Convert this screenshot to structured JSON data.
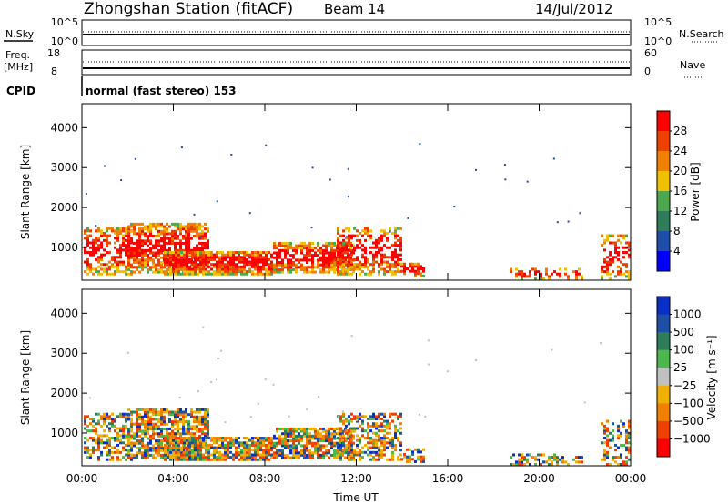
{
  "header": {
    "station": "Zhongshan Station (fitACF)",
    "beam": "Beam 14",
    "date": "14/Jul/2012"
  },
  "noise_panel": {
    "left_label": "N.Sky",
    "left_ticks": [
      "10^5",
      "10^0"
    ],
    "right_label": "N.Search",
    "right_ticks": [
      "10^5",
      "10^0"
    ]
  },
  "freq_panel": {
    "left_label_1": "Freq.",
    "left_label_2": "[MHz]",
    "left_ticks": [
      "18",
      "8"
    ],
    "right_label": "Nave",
    "right_ticks": [
      "60",
      "0"
    ]
  },
  "cpid": {
    "label": "CPID",
    "text": "normal (fast stereo) 153"
  },
  "colors": {
    "power": [
      "#0000ff",
      "#1e4fa8",
      "#2e7d5a",
      "#4ca84c",
      "#f0c000",
      "#f08000",
      "#f04000",
      "#ff0000"
    ],
    "velocity": [
      "#ff0000",
      "#f04000",
      "#f08000",
      "#f0b000",
      "#c0c0c0",
      "#4cb84c",
      "#2e7d5a",
      "#1e4fa8",
      "#0a2fc8"
    ]
  },
  "chart_data": [
    {
      "type": "heatmap",
      "name": "power",
      "ylabel": "Slant Range [km]",
      "ylim": [
        180,
        4600
      ],
      "yticks": [
        "1000",
        "2000",
        "3000",
        "4000"
      ],
      "colorbar_label": "Power [dB]",
      "colorbar_ticks": [
        "4",
        "8",
        "12",
        "16",
        "20",
        "24",
        "28"
      ]
    },
    {
      "type": "heatmap",
      "name": "velocity",
      "ylabel": "Slant Range [km]",
      "ylim": [
        180,
        4600
      ],
      "yticks": [
        "1000",
        "2000",
        "3000",
        "4000"
      ],
      "xlabel": "Time UT",
      "xticks": [
        "00:00",
        "04:00",
        "08:00",
        "12:00",
        "16:00",
        "20:00",
        "00:00"
      ],
      "colorbar_label": "Velocity [m s⁻¹]",
      "colorbar_ticks": [
        "1000",
        "500",
        "100",
        "25",
        "−25",
        "−100",
        "−500",
        "−1000"
      ]
    }
  ]
}
